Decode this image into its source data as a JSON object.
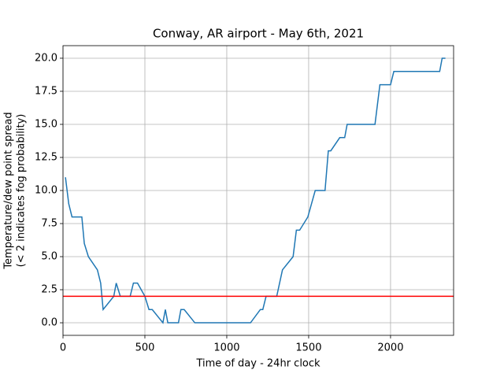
{
  "chart_data": {
    "type": "line",
    "title": "Conway, AR airport - May 6th, 2021",
    "xlabel": "Time of day - 24hr clock",
    "ylabel": [
      "Temperature/dew point spread",
      "(< 2 indicates fog probability)"
    ],
    "x": [
      15,
      35,
      55,
      115,
      130,
      155,
      210,
      230,
      245,
      310,
      325,
      350,
      410,
      430,
      455,
      500,
      525,
      545,
      610,
      625,
      640,
      705,
      720,
      740,
      805,
      1145,
      1205,
      1220,
      1240,
      1305,
      1340,
      1405,
      1425,
      1445,
      1495,
      1540,
      1600,
      1620,
      1635,
      1690,
      1720,
      1735,
      1905,
      1925,
      1935,
      2000,
      2020,
      2300,
      2315,
      2335
    ],
    "series": [
      {
        "color": "#1f77b4",
        "values": [
          11,
          9,
          8,
          8,
          6,
          5,
          4,
          3,
          1,
          2,
          3,
          2,
          2,
          3,
          3,
          2,
          1,
          1,
          0,
          1,
          0,
          0,
          1,
          1,
          0,
          0,
          1,
          1,
          2,
          2,
          4,
          5,
          7,
          7,
          8,
          10,
          10,
          13,
          13,
          14,
          14,
          15,
          15,
          17,
          18,
          18,
          19,
          19,
          20,
          20
        ]
      }
    ],
    "threshold": {
      "value": 2,
      "color": "#ff0000"
    },
    "xlim": [
      0,
      2385
    ],
    "ylim": [
      -0.95,
      20.95
    ],
    "xticks": [
      0,
      500,
      1000,
      1500,
      2000
    ],
    "yticks": [
      {
        "value": 0,
        "label": "0.0"
      },
      2.5,
      {
        "value": 5,
        "label": "5.0"
      },
      7.5,
      {
        "value": 10,
        "label": "10.0"
      },
      12.5,
      {
        "value": 15,
        "label": "15.0"
      },
      17.5,
      {
        "value": 20,
        "label": "20.0"
      }
    ],
    "grid": true
  }
}
